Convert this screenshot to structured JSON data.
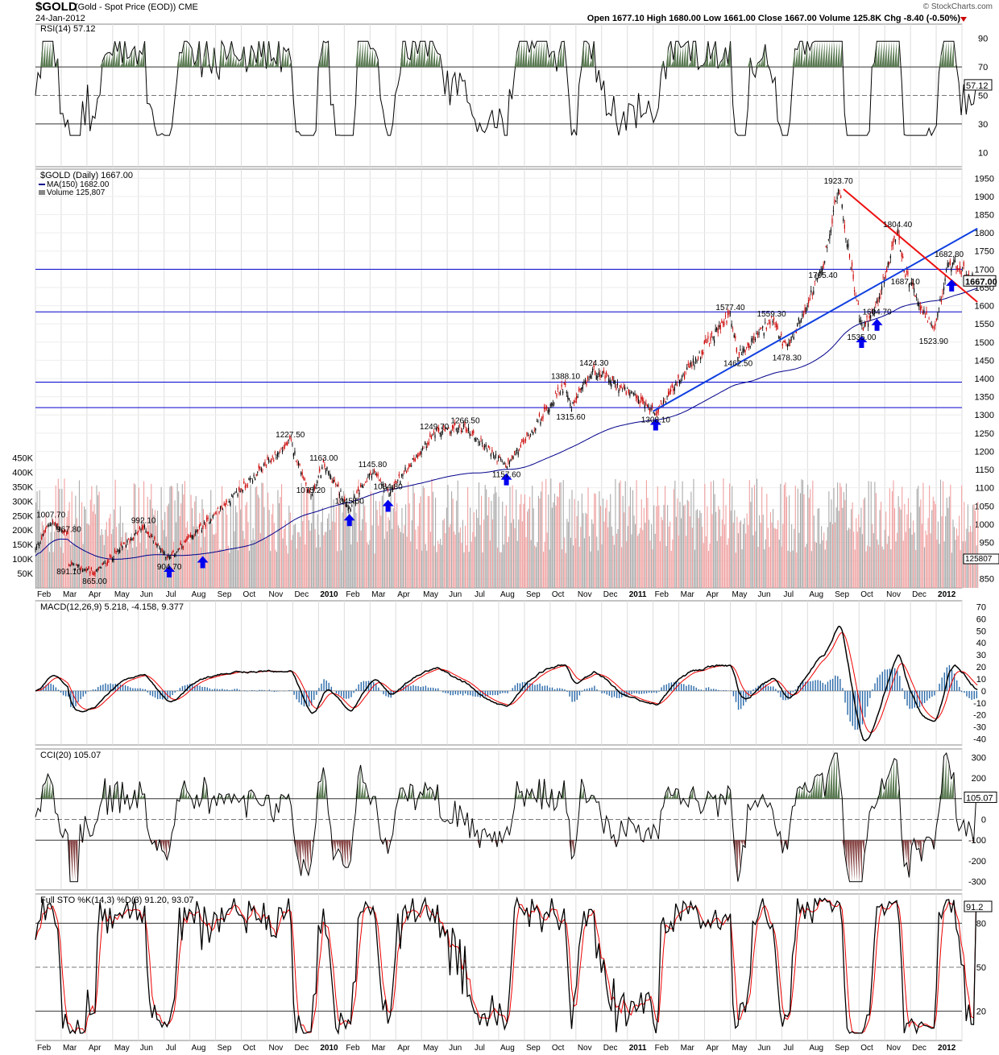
{
  "header": {
    "symbol": "$GOLD",
    "description": "(Gold - Spot Price (EOD))",
    "exchange": "CME",
    "date": "24-Jan-2012",
    "quote_line": "Open 1677.10  High 1680.00  Low 1661.00  Close 1667.00  Volume 125.8K  Chg -8.40 (-0.50%)",
    "watermark": "© StockCharts.com"
  },
  "colors": {
    "up_candle": "#000000",
    "down_candle": "#cc0000",
    "ma_line": "#00008b",
    "hline": "#0000cc",
    "trend_up": "#1040e0",
    "trend_down": "#ee1111",
    "arrow": "#0000ee",
    "overbought_fill": "#5a7a52",
    "oversold_fill": "#8a4a4a",
    "vol_up": "#aaaaaa",
    "vol_down": "#f0a0a0",
    "macd_hist": "#2a6aaa",
    "signal": "#ee0000"
  },
  "chart_data": {
    "type": "line",
    "title": "$GOLD (Gold - Spot Price (EOD)) CME",
    "x_axis": {
      "months": [
        "Feb",
        "Mar",
        "Apr",
        "May",
        "Jun",
        "Jul",
        "Aug",
        "Sep",
        "Oct",
        "Nov",
        "Dec",
        "2010",
        "Feb",
        "Mar",
        "Apr",
        "May",
        "Jun",
        "Jul",
        "Aug",
        "Sep",
        "Oct",
        "Nov",
        "Dec",
        "2011",
        "Feb",
        "Mar",
        "Apr",
        "May",
        "Jun",
        "Jul",
        "Aug",
        "Sep",
        "Oct",
        "Nov",
        "Dec",
        "2012"
      ],
      "range": [
        "2009-02",
        "2012-01-24"
      ]
    },
    "price_panel": {
      "legend": [
        "$GOLD (Daily) 1667.00",
        "MA(150) 1682.00",
        "Volume 125,807"
      ],
      "y_ticks": [
        850,
        900,
        950,
        1000,
        1050,
        1100,
        1150,
        1200,
        1250,
        1300,
        1350,
        1400,
        1450,
        1500,
        1550,
        1600,
        1650,
        1700,
        1750,
        1800,
        1850,
        1900,
        1950
      ],
      "ylim": [
        825,
        1975
      ],
      "horizontal_lines": [
        1320,
        1390,
        1583,
        1700
      ],
      "last_label": "1667.00",
      "ma_label": "1682.00",
      "annotations": [
        {
          "label": "1007.70",
          "x": 0.6,
          "y": 1007.7
        },
        {
          "label": "967.80",
          "x": 1.3,
          "y": 967.8
        },
        {
          "label": "891.10",
          "x": 1.3,
          "y": 891.1
        },
        {
          "label": "865.00",
          "x": 2.3,
          "y": 865
        },
        {
          "label": "992.10",
          "x": 4.2,
          "y": 992.1
        },
        {
          "label": "904.70",
          "x": 5.2,
          "y": 904.7
        },
        {
          "label": "1227.50",
          "x": 9.9,
          "y": 1227.5
        },
        {
          "label": "1075.20",
          "x": 10.7,
          "y": 1075.2
        },
        {
          "label": "1163.00",
          "x": 11.2,
          "y": 1163
        },
        {
          "label": "1045.50",
          "x": 12.2,
          "y": 1045.5
        },
        {
          "label": "1145.80",
          "x": 13.1,
          "y": 1145.8
        },
        {
          "label": "1084.80",
          "x": 13.7,
          "y": 1084.8
        },
        {
          "label": "1249.70",
          "x": 15.5,
          "y": 1249.7
        },
        {
          "label": "1266.50",
          "x": 16.7,
          "y": 1266.5
        },
        {
          "label": "1157.60",
          "x": 18.3,
          "y": 1157.6
        },
        {
          "label": "1388.10",
          "x": 20.6,
          "y": 1388.1
        },
        {
          "label": "1315.60",
          "x": 20.8,
          "y": 1315.6
        },
        {
          "label": "1424.30",
          "x": 21.7,
          "y": 1424.3
        },
        {
          "label": "1308.10",
          "x": 24.1,
          "y": 1308.1
        },
        {
          "label": "1577.40",
          "x": 27.0,
          "y": 1577.4
        },
        {
          "label": "1462.50",
          "x": 27.3,
          "y": 1462.5
        },
        {
          "label": "1559.30",
          "x": 28.6,
          "y": 1559.3
        },
        {
          "label": "1478.30",
          "x": 29.2,
          "y": 1478.3
        },
        {
          "label": "1705.40",
          "x": 30.6,
          "y": 1705.4
        },
        {
          "label": "1923.70",
          "x": 31.2,
          "y": 1923.7
        },
        {
          "label": "1535.00",
          "x": 32.1,
          "y": 1535
        },
        {
          "label": "1604.70",
          "x": 32.7,
          "y": 1604.7
        },
        {
          "label": "1804.40",
          "x": 33.5,
          "y": 1804.4
        },
        {
          "label": "1687.10",
          "x": 33.8,
          "y": 1687.1
        },
        {
          "label": "1523.90",
          "x": 34.9,
          "y": 1523.9
        },
        {
          "label": "1682.80",
          "x": 35.5,
          "y": 1723
        }
      ],
      "up_arrows": [
        {
          "x": 5.2,
          "y": 904.7
        },
        {
          "x": 6.5,
          "y": 930
        },
        {
          "x": 12.2,
          "y": 1045.5
        },
        {
          "x": 13.7,
          "y": 1084.8
        },
        {
          "x": 18.3,
          "y": 1157.6
        },
        {
          "x": 24.1,
          "y": 1308.1
        },
        {
          "x": 32.1,
          "y": 1535
        },
        {
          "x": 32.7,
          "y": 1582
        },
        {
          "x": 35.6,
          "y": 1690
        }
      ],
      "trendlines": [
        {
          "name": "support",
          "points": [
            [
              24.0,
              1310
            ],
            [
              36.6,
              1812
            ]
          ]
        },
        {
          "name": "resistance",
          "points": [
            [
              31.4,
              1920
            ],
            [
              36.6,
              1610
            ]
          ]
        }
      ],
      "volume_ticks": [
        "50K",
        "100K",
        "150K",
        "200K",
        "250K",
        "300K",
        "350K",
        "400K",
        "450K"
      ],
      "volume_last": "125807"
    },
    "indicators": [
      {
        "name": "RSI",
        "label": "RSI(14) 57.12",
        "value": 57.12,
        "ticks": [
          10,
          30,
          50,
          70,
          90
        ],
        "levels": [
          30,
          50,
          70
        ],
        "ylim": [
          0,
          100
        ]
      },
      {
        "name": "MACD",
        "label": "MACD(12,26,9) 5.218, -4.158, 9.377",
        "macd": 5.218,
        "signal": -4.158,
        "histogram": 9.377,
        "ticks": [
          -40,
          -30,
          -20,
          -10,
          0,
          10,
          20,
          30,
          40,
          50,
          60,
          70
        ],
        "ylim": [
          -45,
          75
        ]
      },
      {
        "name": "CCI",
        "label": "CCI(20) 105.07",
        "value": 105.07,
        "ticks": [
          -300,
          -200,
          -100,
          0,
          100,
          200,
          300
        ],
        "levels": [
          -100,
          0,
          100
        ],
        "ylim": [
          -340,
          340
        ]
      },
      {
        "name": "Full STO",
        "label": "Full STO %K(14,3) %D(3) 91.20, 93.07",
        "k": 91.2,
        "d": 93.07,
        "ticks": [
          20,
          50,
          80
        ],
        "levels": [
          20,
          50,
          80
        ],
        "ylim": [
          0,
          100
        ]
      }
    ]
  }
}
